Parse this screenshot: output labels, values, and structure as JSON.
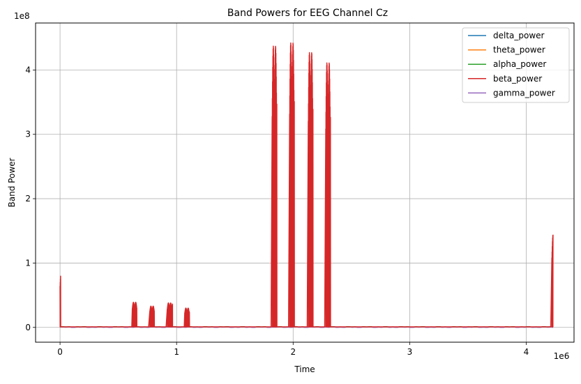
{
  "chart_data": {
    "type": "line",
    "title": "Band Powers for EEG Channel Cz",
    "xlabel": "Time",
    "ylabel": "Band Power",
    "x_exponent_label": "1e6",
    "y_exponent_label": "1e8",
    "xlim": [
      -0.21,
      4.41
    ],
    "ylim": [
      -0.23,
      4.73
    ],
    "x_unit_scale": 1000000,
    "y_unit_scale": 100000000,
    "xticks": [
      0,
      1,
      2,
      3,
      4
    ],
    "yticks": [
      0,
      1,
      2,
      3,
      4
    ],
    "grid": true,
    "legend_position": "upper right",
    "series": [
      {
        "name": "delta_power",
        "color": "#1f77b4",
        "baseline": 0.005
      },
      {
        "name": "theta_power",
        "color": "#ff7f0e",
        "baseline": 0.006
      },
      {
        "name": "alpha_power",
        "color": "#2ca02c",
        "baseline": 0.007
      },
      {
        "name": "beta_power",
        "color": "#d62728",
        "baseline": 0.008
      },
      {
        "name": "gamma_power",
        "color": "#9467bd",
        "baseline": 0.004
      }
    ],
    "beta_bursts": [
      {
        "x_start": 0.0,
        "x_end": 0.005,
        "peak": 0.86
      },
      {
        "x_start": 0.62,
        "x_end": 0.66,
        "peak": 0.39
      },
      {
        "x_start": 0.77,
        "x_end": 0.81,
        "peak": 0.33
      },
      {
        "x_start": 0.92,
        "x_end": 0.965,
        "peak": 0.38
      },
      {
        "x_start": 1.07,
        "x_end": 1.11,
        "peak": 0.3
      },
      {
        "x_start": 1.82,
        "x_end": 1.86,
        "peak": 4.37
      },
      {
        "x_start": 1.97,
        "x_end": 2.01,
        "peak": 4.42
      },
      {
        "x_start": 2.13,
        "x_end": 2.17,
        "peak": 4.27
      },
      {
        "x_start": 2.28,
        "x_end": 2.32,
        "peak": 4.11
      },
      {
        "x_start": 4.22,
        "x_end": 4.23,
        "peak": 1.44
      }
    ]
  }
}
